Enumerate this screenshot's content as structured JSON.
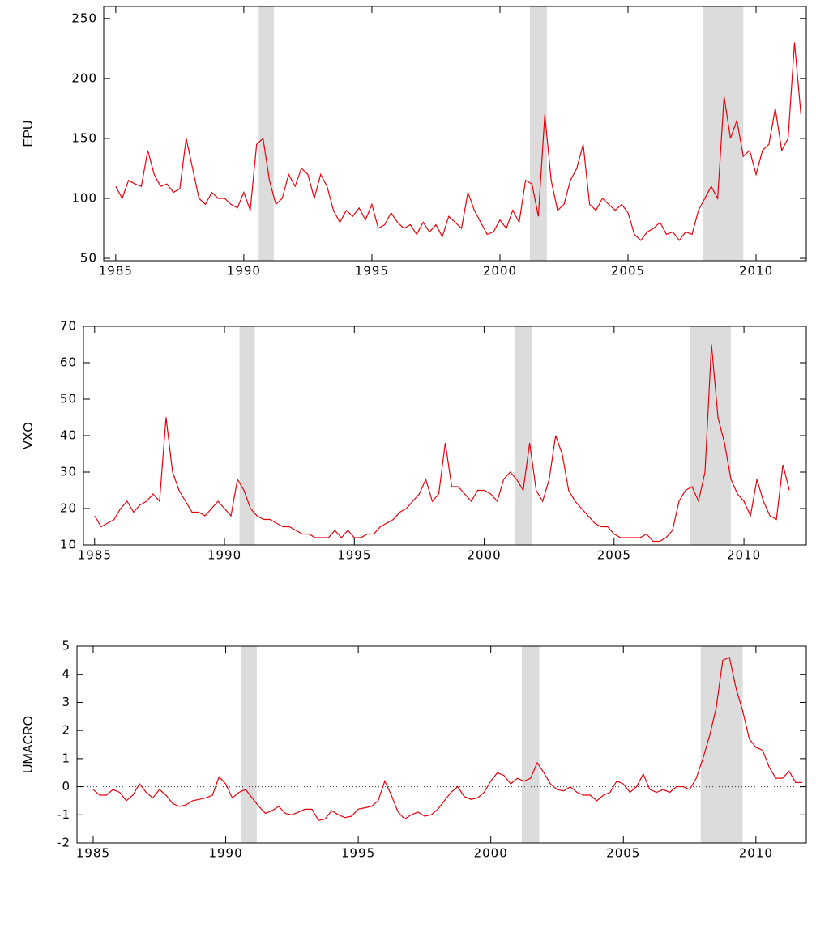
{
  "chart_data": [
    {
      "type": "line",
      "y_label": "EPU",
      "color": "#e8000b",
      "xlim": [
        1984.53,
        2011.96
      ],
      "xticks": [
        1985,
        1990,
        1995,
        2000,
        2005,
        2010
      ],
      "ylim": [
        48,
        260
      ],
      "yticks": [
        50,
        100,
        150,
        200,
        250
      ],
      "shaded_periods": [
        [
          1990.58,
          1991.17
        ],
        [
          2001.17,
          2001.83
        ],
        [
          2007.92,
          2009.5
        ]
      ],
      "shade_color": "#dcdcdc",
      "x": [
        1985,
        1985.25,
        1985.5,
        1985.75,
        1986,
        1986.25,
        1986.5,
        1986.75,
        1987,
        1987.25,
        1987.5,
        1987.75,
        1988,
        1988.25,
        1988.5,
        1988.75,
        1989,
        1989.25,
        1989.5,
        1989.75,
        1990,
        1990.25,
        1990.5,
        1990.75,
        1991,
        1991.25,
        1991.5,
        1991.75,
        1992,
        1992.25,
        1992.5,
        1992.75,
        1993,
        1993.25,
        1993.5,
        1993.75,
        1994,
        1994.25,
        1994.5,
        1994.75,
        1995,
        1995.25,
        1995.5,
        1995.75,
        1996,
        1996.25,
        1996.5,
        1996.75,
        1997,
        1997.25,
        1997.5,
        1997.75,
        1998,
        1998.25,
        1998.5,
        1998.75,
        1999,
        1999.25,
        1999.5,
        1999.75,
        2000,
        2000.25,
        2000.5,
        2000.75,
        2001,
        2001.25,
        2001.5,
        2001.75,
        2002,
        2002.25,
        2002.5,
        2002.75,
        2003,
        2003.25,
        2003.5,
        2003.75,
        2004,
        2004.25,
        2004.5,
        2004.75,
        2005,
        2005.25,
        2005.5,
        2005.75,
        2006,
        2006.25,
        2006.5,
        2006.75,
        2007,
        2007.25,
        2007.5,
        2007.75,
        2008,
        2008.25,
        2008.5,
        2008.75,
        2009,
        2009.25,
        2009.5,
        2009.75,
        2010,
        2010.25,
        2010.5,
        2010.75,
        2011,
        2011.25,
        2011.5,
        2011.75
      ],
      "values": [
        110,
        100,
        115,
        112,
        110,
        140,
        120,
        110,
        112,
        105,
        108,
        150,
        125,
        100,
        95,
        105,
        100,
        100,
        95,
        92,
        105,
        90,
        145,
        150,
        115,
        95,
        100,
        120,
        110,
        125,
        120,
        100,
        120,
        110,
        90,
        80,
        90,
        85,
        92,
        82,
        95,
        75,
        78,
        88,
        80,
        75,
        78,
        70,
        80,
        72,
        78,
        68,
        85,
        80,
        75,
        105,
        90,
        80,
        70,
        72,
        82,
        75,
        90,
        80,
        115,
        112,
        85,
        170,
        115,
        90,
        95,
        115,
        125,
        145,
        95,
        90,
        100,
        95,
        90,
        95,
        88,
        70,
        65,
        72,
        75,
        80,
        70,
        72,
        65,
        72,
        70,
        90,
        100,
        110,
        100,
        185,
        150,
        165,
        135,
        140,
        120,
        140,
        145,
        175,
        140,
        150,
        230,
        170
      ]
    },
    {
      "type": "line",
      "y_label": "VXO",
      "color": "#e8000b",
      "xlim": [
        1984.57,
        2012.4
      ],
      "xticks": [
        1985,
        1990,
        1995,
        2000,
        2005,
        2010
      ],
      "ylim": [
        10,
        70
      ],
      "yticks": [
        10,
        20,
        30,
        40,
        50,
        60,
        70
      ],
      "shaded_periods": [
        [
          1990.58,
          1991.17
        ],
        [
          2001.17,
          2001.83
        ],
        [
          2007.92,
          2009.5
        ]
      ],
      "shade_color": "#dcdcdc",
      "x": [
        1985,
        1985.25,
        1985.5,
        1985.75,
        1986,
        1986.25,
        1986.5,
        1986.75,
        1987,
        1987.25,
        1987.5,
        1987.75,
        1988,
        1988.25,
        1988.5,
        1988.75,
        1989,
        1989.25,
        1989.5,
        1989.75,
        1990,
        1990.25,
        1990.5,
        1990.75,
        1991,
        1991.25,
        1991.5,
        1991.75,
        1992,
        1992.25,
        1992.5,
        1992.75,
        1993,
        1993.25,
        1993.5,
        1993.75,
        1994,
        1994.25,
        1994.5,
        1994.75,
        1995,
        1995.25,
        1995.5,
        1995.75,
        1996,
        1996.25,
        1996.5,
        1996.75,
        1997,
        1997.25,
        1997.5,
        1997.75,
        1998,
        1998.25,
        1998.5,
        1998.75,
        1999,
        1999.25,
        1999.5,
        1999.75,
        2000,
        2000.25,
        2000.5,
        2000.75,
        2001,
        2001.25,
        2001.5,
        2001.75,
        2002,
        2002.25,
        2002.5,
        2002.75,
        2003,
        2003.25,
        2003.5,
        2003.75,
        2004,
        2004.25,
        2004.5,
        2004.75,
        2005,
        2005.25,
        2005.5,
        2005.75,
        2006,
        2006.25,
        2006.5,
        2006.75,
        2007,
        2007.25,
        2007.5,
        2007.75,
        2008,
        2008.25,
        2008.5,
        2008.75,
        2009,
        2009.25,
        2009.5,
        2009.75,
        2010,
        2010.25,
        2010.5,
        2010.75,
        2011,
        2011.25,
        2011.5,
        2011.75
      ],
      "values": [
        18,
        15,
        16,
        17,
        20,
        22,
        19,
        21,
        22,
        24,
        22,
        45,
        30,
        25,
        22,
        19,
        19,
        18,
        20,
        22,
        20,
        18,
        28,
        25,
        20,
        18,
        17,
        17,
        16,
        15,
        15,
        14,
        13,
        13,
        12,
        12,
        12,
        14,
        12,
        14,
        12,
        12,
        13,
        13,
        15,
        16,
        17,
        19,
        20,
        22,
        24,
        28,
        22,
        24,
        38,
        26,
        26,
        24,
        22,
        25,
        25,
        24,
        22,
        28,
        30,
        28,
        25,
        38,
        25,
        22,
        28,
        40,
        35,
        25,
        22,
        20,
        18,
        16,
        15,
        15,
        13,
        12,
        12,
        12,
        12,
        13,
        11,
        11,
        12,
        14,
        22,
        25,
        26,
        22,
        30,
        65,
        45,
        38,
        28,
        24,
        22,
        18,
        28,
        22,
        18,
        17,
        32,
        25
      ]
    },
    {
      "type": "line",
      "y_label": "UMACRO",
      "color": "#e8000b",
      "xlim": [
        1984.39,
        2011.9
      ],
      "xticks": [
        1985,
        1990,
        1995,
        2000,
        2005,
        2010
      ],
      "ylim": [
        -2,
        5
      ],
      "yticks": [
        -2,
        -1,
        0,
        1,
        2,
        3,
        4,
        5
      ],
      "hline": 0,
      "shaded_periods": [
        [
          1990.58,
          1991.17
        ],
        [
          2001.17,
          2001.83
        ],
        [
          2007.92,
          2009.5
        ]
      ],
      "shade_color": "#dcdcdc",
      "x": [
        1985,
        1985.25,
        1985.5,
        1985.75,
        1986,
        1986.25,
        1986.5,
        1986.75,
        1987,
        1987.25,
        1987.5,
        1987.75,
        1988,
        1988.25,
        1988.5,
        1988.75,
        1989,
        1989.25,
        1989.5,
        1989.75,
        1990,
        1990.25,
        1990.5,
        1990.75,
        1991,
        1991.25,
        1991.5,
        1991.75,
        1992,
        1992.25,
        1992.5,
        1992.75,
        1993,
        1993.25,
        1993.5,
        1993.75,
        1994,
        1994.25,
        1994.5,
        1994.75,
        1995,
        1995.25,
        1995.5,
        1995.75,
        1996,
        1996.25,
        1996.5,
        1996.75,
        1997,
        1997.25,
        1997.5,
        1997.75,
        1998,
        1998.25,
        1998.5,
        1998.75,
        1999,
        1999.25,
        1999.5,
        1999.75,
        2000,
        2000.25,
        2000.5,
        2000.75,
        2001,
        2001.25,
        2001.5,
        2001.75,
        2002,
        2002.25,
        2002.5,
        2002.75,
        2003,
        2003.25,
        2003.5,
        2003.75,
        2004,
        2004.25,
        2004.5,
        2004.75,
        2005,
        2005.25,
        2005.5,
        2005.75,
        2006,
        2006.25,
        2006.5,
        2006.75,
        2007,
        2007.25,
        2007.5,
        2007.75,
        2008,
        2008.25,
        2008.5,
        2008.75,
        2009,
        2009.25,
        2009.5,
        2009.75,
        2010,
        2010.25,
        2010.5,
        2010.75,
        2011,
        2011.25,
        2011.5,
        2011.75
      ],
      "values": [
        -0.1,
        -0.3,
        -0.3,
        -0.1,
        -0.2,
        -0.5,
        -0.3,
        0.1,
        -0.2,
        -0.4,
        -0.1,
        -0.3,
        -0.6,
        -0.7,
        -0.65,
        -0.5,
        -0.45,
        -0.4,
        -0.3,
        0.35,
        0.1,
        -0.4,
        -0.2,
        -0.1,
        -0.4,
        -0.7,
        -0.95,
        -0.85,
        -0.7,
        -0.95,
        -1.0,
        -0.9,
        -0.8,
        -0.8,
        -1.2,
        -1.15,
        -0.85,
        -1.0,
        -1.1,
        -1.05,
        -0.8,
        -0.75,
        -0.7,
        -0.5,
        0.2,
        -0.3,
        -0.9,
        -1.15,
        -1.0,
        -0.9,
        -1.05,
        -1.0,
        -0.8,
        -0.5,
        -0.2,
        0.0,
        -0.35,
        -0.45,
        -0.4,
        -0.2,
        0.2,
        0.5,
        0.4,
        0.1,
        0.3,
        0.2,
        0.3,
        0.85,
        0.5,
        0.1,
        -0.1,
        -0.15,
        0.0,
        -0.2,
        -0.3,
        -0.3,
        -0.5,
        -0.3,
        -0.2,
        0.2,
        0.1,
        -0.2,
        0.0,
        0.45,
        -0.1,
        -0.2,
        -0.1,
        -0.2,
        0.0,
        0.0,
        -0.1,
        0.3,
        1.0,
        1.8,
        2.8,
        4.5,
        4.6,
        3.5,
        2.7,
        1.7,
        1.4,
        1.3,
        0.7,
        0.3,
        0.3,
        0.55,
        0.15,
        0.15
      ]
    }
  ]
}
